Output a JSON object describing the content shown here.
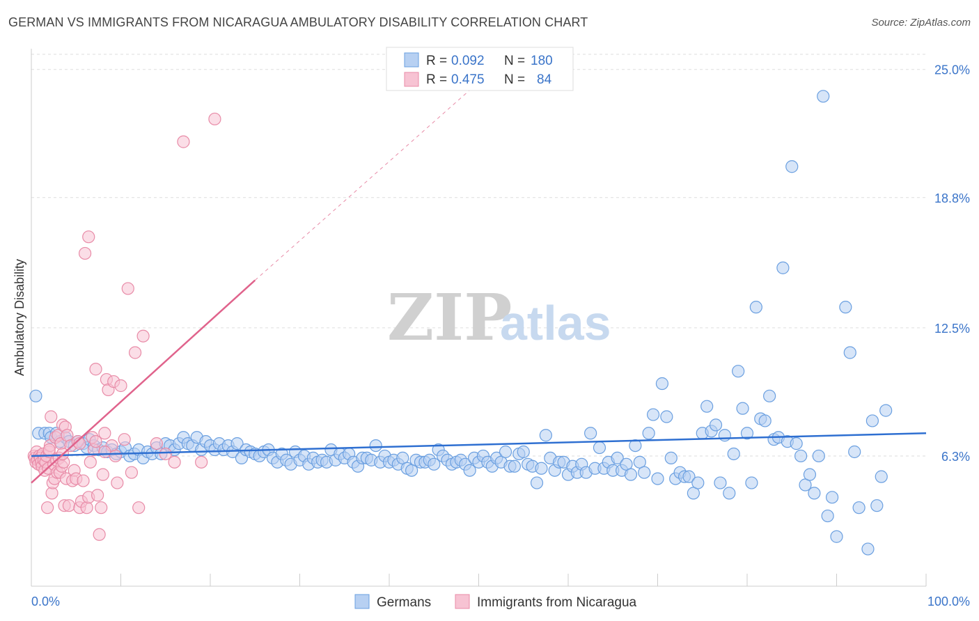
{
  "header": {
    "title": "GERMAN VS IMMIGRANTS FROM NICARAGUA AMBULATORY DISABILITY CORRELATION CHART",
    "source": "Source: ZipAtlas.com"
  },
  "watermark": {
    "zip": "ZIP",
    "atlas": "atlas"
  },
  "colors": {
    "germans": "#6a9fe0",
    "germans_fill": "#b7d0f2",
    "germans_line": "#2e6fd1",
    "nicaragua": "#e88ba7",
    "nicaragua_fill": "#f7c3d3",
    "nicaragua_line": "#e0638c",
    "grid": "#dddddd",
    "axis_text": "#3a74c9"
  },
  "legend": {
    "rows": [
      {
        "r_label": "R = ",
        "r_value": "0.092",
        "n_label": "N = ",
        "n_value": "180"
      },
      {
        "r_label": "R = ",
        "r_value": "0.475",
        "n_label": "N = ",
        "n_value": "84"
      }
    ]
  },
  "bottom_legend": [
    "Germans",
    "Immigrants from Nicaragua"
  ],
  "chart_data": {
    "type": "scatter",
    "title": "GERMAN VS IMMIGRANTS FROM NICARAGUA AMBULATORY DISABILITY CORRELATION CHART",
    "xlabel": "",
    "ylabel": "Ambulatory Disability",
    "xlim": [
      0,
      100
    ],
    "ylim": [
      0,
      26
    ],
    "x_tick_labels": [
      "0.0%",
      "100.0%"
    ],
    "y_ticks": [
      6.3,
      12.5,
      18.8,
      25.0
    ],
    "y_tick_labels": [
      "6.3%",
      "12.5%",
      "18.8%",
      "25.0%"
    ],
    "grid": "horizontal dashed",
    "legend_position": "top-center",
    "series": [
      {
        "name": "Germans",
        "r": 0.092,
        "n": 180,
        "trend": {
          "x": [
            0,
            100
          ],
          "y": [
            6.3,
            7.4
          ]
        },
        "points": [
          [
            0.5,
            9.2
          ],
          [
            0.8,
            7.4
          ],
          [
            1.5,
            7.4
          ],
          [
            2.0,
            7.4
          ],
          [
            2.2,
            7.2
          ],
          [
            2.8,
            7.4
          ],
          [
            3.2,
            7.0
          ],
          [
            3.8,
            7.2
          ],
          [
            4.2,
            7.0
          ],
          [
            4.8,
            6.8
          ],
          [
            5.2,
            7.0
          ],
          [
            5.8,
            6.9
          ],
          [
            6.2,
            6.7
          ],
          [
            6.5,
            7.1
          ],
          [
            7.0,
            6.8
          ],
          [
            7.5,
            6.6
          ],
          [
            8.0,
            6.7
          ],
          [
            8.5,
            6.5
          ],
          [
            9.0,
            6.6
          ],
          [
            9.5,
            6.4
          ],
          [
            10.0,
            6.5
          ],
          [
            10.5,
            6.7
          ],
          [
            11.0,
            6.3
          ],
          [
            11.5,
            6.4
          ],
          [
            12.0,
            6.6
          ],
          [
            12.5,
            6.2
          ],
          [
            13.0,
            6.5
          ],
          [
            13.5,
            6.4
          ],
          [
            14.0,
            6.7
          ],
          [
            14.5,
            6.4
          ],
          [
            15.0,
            6.9
          ],
          [
            15.5,
            6.8
          ],
          [
            16.0,
            6.6
          ],
          [
            16.5,
            6.9
          ],
          [
            17.0,
            7.2
          ],
          [
            17.5,
            6.9
          ],
          [
            18.0,
            6.8
          ],
          [
            18.5,
            7.2
          ],
          [
            19.0,
            6.6
          ],
          [
            19.5,
            7.0
          ],
          [
            20.0,
            6.8
          ],
          [
            20.5,
            6.6
          ],
          [
            21.0,
            6.9
          ],
          [
            21.5,
            6.6
          ],
          [
            22.0,
            6.8
          ],
          [
            22.5,
            6.5
          ],
          [
            23.0,
            6.9
          ],
          [
            23.5,
            6.2
          ],
          [
            24.0,
            6.6
          ],
          [
            24.5,
            6.5
          ],
          [
            25.0,
            6.4
          ],
          [
            25.5,
            6.3
          ],
          [
            26.0,
            6.5
          ],
          [
            26.5,
            6.6
          ],
          [
            27.0,
            6.2
          ],
          [
            27.5,
            6.0
          ],
          [
            28.0,
            6.4
          ],
          [
            28.5,
            6.1
          ],
          [
            29.0,
            5.9
          ],
          [
            29.5,
            6.5
          ],
          [
            30.0,
            6.1
          ],
          [
            30.5,
            6.3
          ],
          [
            31.0,
            5.9
          ],
          [
            31.5,
            6.2
          ],
          [
            32.0,
            6.0
          ],
          [
            32.5,
            6.1
          ],
          [
            33.0,
            6.0
          ],
          [
            33.5,
            6.6
          ],
          [
            34.0,
            6.1
          ],
          [
            34.5,
            6.4
          ],
          [
            35.0,
            6.2
          ],
          [
            35.5,
            6.4
          ],
          [
            36.0,
            6.0
          ],
          [
            36.5,
            5.8
          ],
          [
            37.0,
            6.2
          ],
          [
            37.5,
            6.2
          ],
          [
            38.0,
            6.1
          ],
          [
            38.5,
            6.8
          ],
          [
            39.0,
            6.0
          ],
          [
            39.5,
            6.3
          ],
          [
            40.0,
            6.0
          ],
          [
            40.5,
            6.1
          ],
          [
            41.0,
            5.9
          ],
          [
            41.5,
            6.2
          ],
          [
            42.0,
            5.7
          ],
          [
            42.5,
            5.6
          ],
          [
            43.0,
            6.1
          ],
          [
            43.5,
            6.0
          ],
          [
            44.0,
            6.0
          ],
          [
            44.5,
            6.1
          ],
          [
            45.0,
            5.9
          ],
          [
            45.5,
            6.6
          ],
          [
            46.0,
            6.3
          ],
          [
            46.5,
            6.1
          ],
          [
            47.0,
            5.9
          ],
          [
            47.5,
            6.0
          ],
          [
            48.0,
            6.1
          ],
          [
            48.5,
            5.9
          ],
          [
            49.0,
            5.6
          ],
          [
            49.5,
            6.2
          ],
          [
            50.0,
            6.0
          ],
          [
            50.5,
            6.3
          ],
          [
            51.0,
            6.0
          ],
          [
            51.5,
            5.8
          ],
          [
            52.0,
            6.2
          ],
          [
            52.5,
            6.0
          ],
          [
            53.0,
            6.5
          ],
          [
            53.5,
            5.8
          ],
          [
            54.0,
            5.8
          ],
          [
            54.5,
            6.4
          ],
          [
            55.0,
            6.5
          ],
          [
            55.5,
            5.9
          ],
          [
            56.0,
            5.8
          ],
          [
            56.5,
            5.0
          ],
          [
            57.0,
            5.7
          ],
          [
            57.5,
            7.3
          ],
          [
            58.0,
            6.2
          ],
          [
            58.5,
            5.6
          ],
          [
            59.0,
            6.0
          ],
          [
            59.5,
            6.0
          ],
          [
            60.0,
            5.4
          ],
          [
            60.5,
            5.8
          ],
          [
            61.0,
            5.5
          ],
          [
            61.5,
            5.9
          ],
          [
            62.0,
            5.5
          ],
          [
            62.5,
            7.4
          ],
          [
            63.0,
            5.7
          ],
          [
            63.5,
            6.7
          ],
          [
            64.0,
            5.7
          ],
          [
            64.5,
            6.0
          ],
          [
            65.0,
            5.6
          ],
          [
            65.5,
            6.2
          ],
          [
            66.0,
            5.6
          ],
          [
            66.5,
            5.9
          ],
          [
            67.0,
            5.4
          ],
          [
            67.5,
            6.8
          ],
          [
            68.0,
            6.0
          ],
          [
            68.5,
            5.5
          ],
          [
            69.0,
            7.4
          ],
          [
            69.5,
            8.3
          ],
          [
            70.0,
            5.2
          ],
          [
            70.5,
            9.8
          ],
          [
            71.0,
            8.2
          ],
          [
            71.5,
            6.2
          ],
          [
            72.0,
            5.2
          ],
          [
            72.5,
            5.5
          ],
          [
            73.0,
            5.3
          ],
          [
            73.5,
            5.3
          ],
          [
            74.0,
            4.5
          ],
          [
            74.5,
            5.0
          ],
          [
            75.0,
            7.4
          ],
          [
            75.5,
            8.7
          ],
          [
            76.0,
            7.5
          ],
          [
            76.5,
            7.8
          ],
          [
            77.0,
            5.0
          ],
          [
            77.5,
            7.3
          ],
          [
            78.0,
            4.5
          ],
          [
            78.5,
            6.4
          ],
          [
            79.0,
            10.4
          ],
          [
            79.5,
            8.6
          ],
          [
            80.0,
            7.4
          ],
          [
            80.5,
            5.0
          ],
          [
            81.0,
            13.5
          ],
          [
            81.5,
            8.1
          ],
          [
            82.0,
            8.0
          ],
          [
            82.5,
            9.2
          ],
          [
            83.0,
            7.1
          ],
          [
            83.5,
            7.2
          ],
          [
            84.0,
            15.4
          ],
          [
            84.5,
            7.0
          ],
          [
            85.0,
            20.3
          ],
          [
            85.5,
            6.9
          ],
          [
            86.0,
            6.3
          ],
          [
            86.5,
            4.9
          ],
          [
            87.0,
            5.4
          ],
          [
            87.5,
            4.5
          ],
          [
            88.0,
            6.3
          ],
          [
            88.5,
            23.7
          ],
          [
            89.0,
            3.4
          ],
          [
            89.5,
            4.3
          ],
          [
            90.0,
            2.4
          ],
          [
            91.0,
            13.5
          ],
          [
            91.5,
            11.3
          ],
          [
            92.0,
            6.5
          ],
          [
            92.5,
            3.8
          ],
          [
            93.5,
            1.8
          ],
          [
            94.0,
            8.0
          ],
          [
            94.5,
            3.9
          ],
          [
            95.0,
            5.3
          ],
          [
            95.5,
            8.5
          ]
        ]
      },
      {
        "name": "Immigrants from Nicaragua",
        "r": 0.475,
        "n": 84,
        "trend": {
          "x": [
            0,
            25
          ],
          "y": [
            5.0,
            14.8
          ]
        },
        "trend_dashed": {
          "x": [
            25,
            49
          ],
          "y": [
            14.8,
            24.0
          ]
        },
        "points": [
          [
            0.3,
            6.3
          ],
          [
            0.4,
            6.2
          ],
          [
            0.5,
            6.0
          ],
          [
            0.6,
            6.5
          ],
          [
            0.7,
            6.1
          ],
          [
            0.8,
            5.9
          ],
          [
            0.9,
            6.3
          ],
          [
            1.0,
            6.2
          ],
          [
            1.1,
            6.0
          ],
          [
            1.2,
            5.8
          ],
          [
            1.3,
            6.4
          ],
          [
            1.4,
            6.1
          ],
          [
            1.5,
            5.6
          ],
          [
            1.6,
            6.0
          ],
          [
            1.7,
            6.3
          ],
          [
            1.8,
            3.8
          ],
          [
            1.9,
            5.7
          ],
          [
            2.0,
            6.5
          ],
          [
            2.1,
            6.8
          ],
          [
            2.2,
            8.2
          ],
          [
            2.3,
            4.5
          ],
          [
            2.4,
            5.0
          ],
          [
            2.5,
            5.9
          ],
          [
            2.6,
            5.2
          ],
          [
            2.7,
            7.2
          ],
          [
            2.8,
            6.1
          ],
          [
            2.9,
            5.5
          ],
          [
            3.0,
            7.3
          ],
          [
            3.1,
            6.2
          ],
          [
            3.2,
            5.5
          ],
          [
            3.3,
            6.9
          ],
          [
            3.4,
            5.8
          ],
          [
            3.5,
            7.8
          ],
          [
            3.6,
            6.0
          ],
          [
            3.7,
            3.9
          ],
          [
            3.8,
            7.7
          ],
          [
            3.9,
            5.2
          ],
          [
            4.0,
            7.3
          ],
          [
            4.2,
            3.9
          ],
          [
            4.4,
            6.8
          ],
          [
            4.6,
            5.1
          ],
          [
            4.8,
            5.6
          ],
          [
            5.0,
            5.2
          ],
          [
            5.2,
            7.0
          ],
          [
            5.4,
            3.8
          ],
          [
            5.6,
            4.1
          ],
          [
            5.8,
            5.1
          ],
          [
            6.0,
            16.1
          ],
          [
            6.2,
            3.8
          ],
          [
            6.4,
            4.3
          ],
          [
            6.6,
            6.0
          ],
          [
            6.8,
            7.2
          ],
          [
            7.0,
            6.6
          ],
          [
            7.2,
            7.0
          ],
          [
            7.4,
            4.4
          ],
          [
            7.6,
            2.5
          ],
          [
            7.8,
            3.8
          ],
          [
            8.0,
            5.4
          ],
          [
            8.2,
            7.4
          ],
          [
            8.4,
            10.0
          ],
          [
            8.6,
            9.5
          ],
          [
            9.0,
            6.8
          ],
          [
            9.2,
            9.9
          ],
          [
            9.6,
            5.0
          ],
          [
            10.0,
            9.7
          ],
          [
            10.4,
            7.1
          ],
          [
            10.8,
            14.4
          ],
          [
            11.2,
            5.5
          ],
          [
            11.6,
            11.3
          ],
          [
            12.0,
            3.8
          ],
          [
            12.5,
            12.1
          ],
          [
            14.0,
            6.9
          ],
          [
            15.0,
            6.4
          ],
          [
            16.0,
            6.0
          ],
          [
            17.0,
            21.5
          ],
          [
            19.0,
            6.0
          ],
          [
            20.5,
            22.6
          ],
          [
            5.4,
            6.9
          ],
          [
            6.4,
            16.9
          ],
          [
            7.2,
            10.5
          ],
          [
            8.2,
            6.5
          ],
          [
            9.4,
            6.3
          ],
          [
            3.5,
            6.4
          ],
          [
            2.0,
            6.6
          ]
        ]
      }
    ]
  }
}
